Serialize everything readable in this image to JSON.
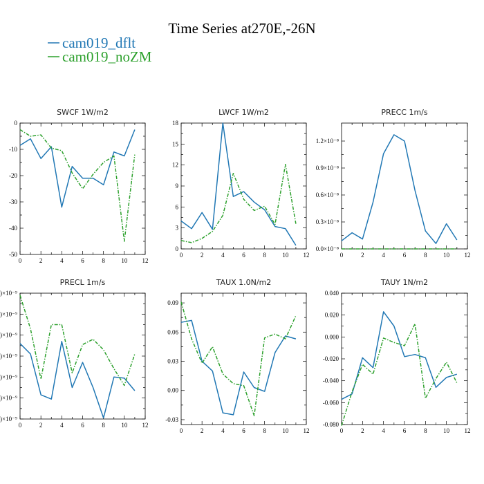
{
  "figure": {
    "title": "Time Series at270E,-26N",
    "legend": [
      {
        "label": "cam019_dflt",
        "color": "#2077b4"
      },
      {
        "label": "cam019_noZM",
        "color": "#2ca02c"
      }
    ]
  },
  "chart_data": [
    {
      "type": "line",
      "title": "SWCF   1W/m2",
      "xlim": [
        0,
        12
      ],
      "ylim": [
        -50,
        0
      ],
      "xticks": [
        0,
        2,
        4,
        6,
        8,
        10,
        12
      ],
      "xtick_labels": [
        "0",
        "2",
        "4",
        "6",
        "8",
        "10",
        "12"
      ],
      "yticks": [
        0,
        -10,
        -20,
        -30,
        -40,
        -50
      ],
      "ytick_labels": [
        "0",
        "-10",
        "-20",
        "-30",
        "-40",
        "-50"
      ],
      "x": [
        0,
        1,
        2,
        3,
        4,
        5,
        6,
        7,
        8,
        9,
        10,
        11
      ],
      "series": [
        {
          "name": "cam019_dflt",
          "values": [
            -8.5,
            -6,
            -13.5,
            -9,
            -32,
            -16.5,
            -21,
            -21,
            -23.5,
            -11,
            -12.5,
            -2.5
          ]
        },
        {
          "name": "cam019_noZM",
          "values": [
            -2.5,
            -5,
            -4.5,
            -9.5,
            -10.5,
            -19,
            -25,
            -19.5,
            -15,
            -12.5,
            -45,
            -12
          ]
        }
      ]
    },
    {
      "type": "line",
      "title": "LWCF   1W/m2",
      "xlim": [
        0,
        12
      ],
      "ylim": [
        0,
        18
      ],
      "xticks": [
        0,
        2,
        4,
        6,
        8,
        10,
        12
      ],
      "xtick_labels": [
        "0",
        "2",
        "4",
        "6",
        "8",
        "10",
        "12"
      ],
      "yticks": [
        0,
        3,
        6,
        9,
        12,
        15,
        18
      ],
      "ytick_labels": [
        "0",
        "3",
        "6",
        "9",
        "12",
        "15",
        "18"
      ],
      "x": [
        0,
        1,
        2,
        3,
        4,
        5,
        6,
        7,
        8,
        9,
        10,
        11
      ],
      "series": [
        {
          "name": "cam019_dflt",
          "values": [
            4,
            2.9,
            5.2,
            2.8,
            18,
            7.5,
            8.2,
            6.7,
            5.6,
            3.2,
            2.9,
            0.5
          ]
        },
        {
          "name": "cam019_noZM",
          "values": [
            1.2,
            0.9,
            1.5,
            2.5,
            4.8,
            10.8,
            7.1,
            5.5,
            6.1,
            3.5,
            12.1,
            3.6
          ]
        }
      ]
    },
    {
      "type": "line",
      "title": "PRECC   1m/s",
      "xlim": [
        0,
        12
      ],
      "ylim": [
        0,
        1.4e-08
      ],
      "xticks": [
        0,
        2,
        4,
        6,
        8,
        10,
        12
      ],
      "xtick_labels": [
        "0",
        "2",
        "4",
        "6",
        "8",
        "10",
        "12"
      ],
      "yticks": [
        0,
        3e-09,
        6e-09,
        9e-09,
        1.2e-08
      ],
      "ytick_labels": [
        "0.0×10⁻⁸",
        "0.3×10⁻⁸",
        "0.6×10⁻⁸",
        "0.9×10⁻⁸",
        "1.2×10⁻⁸"
      ],
      "x": [
        0,
        1,
        2,
        3,
        4,
        5,
        6,
        7,
        8,
        9,
        10,
        11
      ],
      "series": [
        {
          "name": "cam019_dflt",
          "values": [
            9e-10,
            1.8e-09,
            1.1e-09,
            5.2e-09,
            1.06e-08,
            1.27e-08,
            1.2e-08,
            6.5e-09,
            2e-09,
            6e-10,
            2.8e-09,
            1e-09
          ]
        },
        {
          "name": "cam019_noZM",
          "values": [
            0,
            0,
            0,
            0,
            0,
            0,
            0,
            0,
            0,
            0,
            0,
            0
          ]
        }
      ]
    },
    {
      "type": "line",
      "title": "PRECL   1m/s",
      "xlim": [
        0,
        12
      ],
      "ylim": [
        0,
        6
      ],
      "xticks": [
        0,
        2,
        4,
        6,
        8,
        10,
        12
      ],
      "xtick_labels": [
        "0",
        "2",
        "4",
        "6",
        "8",
        "10",
        "12"
      ],
      "yticks": [
        0,
        1,
        2,
        3,
        4,
        5,
        6
      ],
      "ytick_labels": [
        ")×10⁻⁹",
        ")×10⁻⁹",
        ")×10⁻⁹",
        ")×10⁻⁹",
        ")×10⁻⁹",
        ")×10⁻⁹",
        ")×10⁻⁹"
      ],
      "x": [
        0,
        1,
        2,
        3,
        4,
        5,
        6,
        7,
        8,
        9,
        10,
        11
      ],
      "series": [
        {
          "name": "cam019_dflt",
          "values": [
            3.6,
            3.1,
            1.15,
            0.95,
            3.7,
            1.5,
            2.7,
            1.5,
            0.05,
            2,
            1.95,
            1.35
          ]
        },
        {
          "name": "cam019_noZM",
          "values": [
            5.9,
            4.3,
            1.9,
            4.5,
            4.5,
            2.2,
            3.55,
            3.8,
            3.3,
            2.4,
            1.6,
            3.1
          ]
        }
      ]
    },
    {
      "type": "line",
      "title": "TAUX   1.0N/m2",
      "xlim": [
        0,
        12
      ],
      "ylim": [
        -0.035,
        0.1
      ],
      "xticks": [
        0,
        2,
        4,
        6,
        8,
        10,
        12
      ],
      "xtick_labels": [
        "0",
        "2",
        "4",
        "6",
        "8",
        "10",
        "12"
      ],
      "yticks": [
        -0.03,
        0,
        0.03,
        0.06,
        0.09
      ],
      "ytick_labels": [
        "-0.03",
        "0.00",
        "0.03",
        "0.06",
        "0.09"
      ],
      "x": [
        0,
        1,
        2,
        3,
        4,
        5,
        6,
        7,
        8,
        9,
        10,
        11
      ],
      "series": [
        {
          "name": "cam019_dflt",
          "values": [
            0.07,
            0.072,
            0.03,
            0.02,
            -0.023,
            -0.025,
            0.019,
            0.003,
            -0.001,
            0.039,
            0.056,
            0.053
          ]
        },
        {
          "name": "cam019_noZM",
          "values": [
            0.091,
            0.053,
            0.028,
            0.045,
            0.017,
            0.007,
            0.005,
            -0.026,
            0.054,
            0.058,
            0.053,
            0.077
          ]
        }
      ]
    },
    {
      "type": "line",
      "title": "TAUY   1N/m2",
      "xlim": [
        0,
        12
      ],
      "ylim": [
        -0.08,
        0.04
      ],
      "xticks": [
        0,
        2,
        4,
        6,
        8,
        10,
        12
      ],
      "xtick_labels": [
        "0",
        "2",
        "4",
        "6",
        "8",
        "10",
        "12"
      ],
      "yticks": [
        -0.08,
        -0.06,
        -0.04,
        -0.02,
        0,
        0.02,
        0.04
      ],
      "ytick_labels": [
        "-0.080",
        "-0.060",
        "-0.040",
        "-0.020",
        "0.000",
        "0.020",
        "0.040"
      ],
      "x": [
        0,
        1,
        2,
        3,
        4,
        5,
        6,
        7,
        8,
        9,
        10,
        11
      ],
      "series": [
        {
          "name": "cam019_dflt",
          "values": [
            -0.057,
            -0.052,
            -0.019,
            -0.028,
            0.023,
            0.01,
            -0.018,
            -0.016,
            -0.019,
            -0.046,
            -0.037,
            -0.034
          ]
        },
        {
          "name": "cam019_noZM",
          "values": [
            -0.081,
            -0.05,
            -0.025,
            -0.034,
            -0.001,
            -0.005,
            -0.008,
            0.012,
            -0.056,
            -0.038,
            -0.023,
            -0.042
          ]
        }
      ]
    }
  ]
}
